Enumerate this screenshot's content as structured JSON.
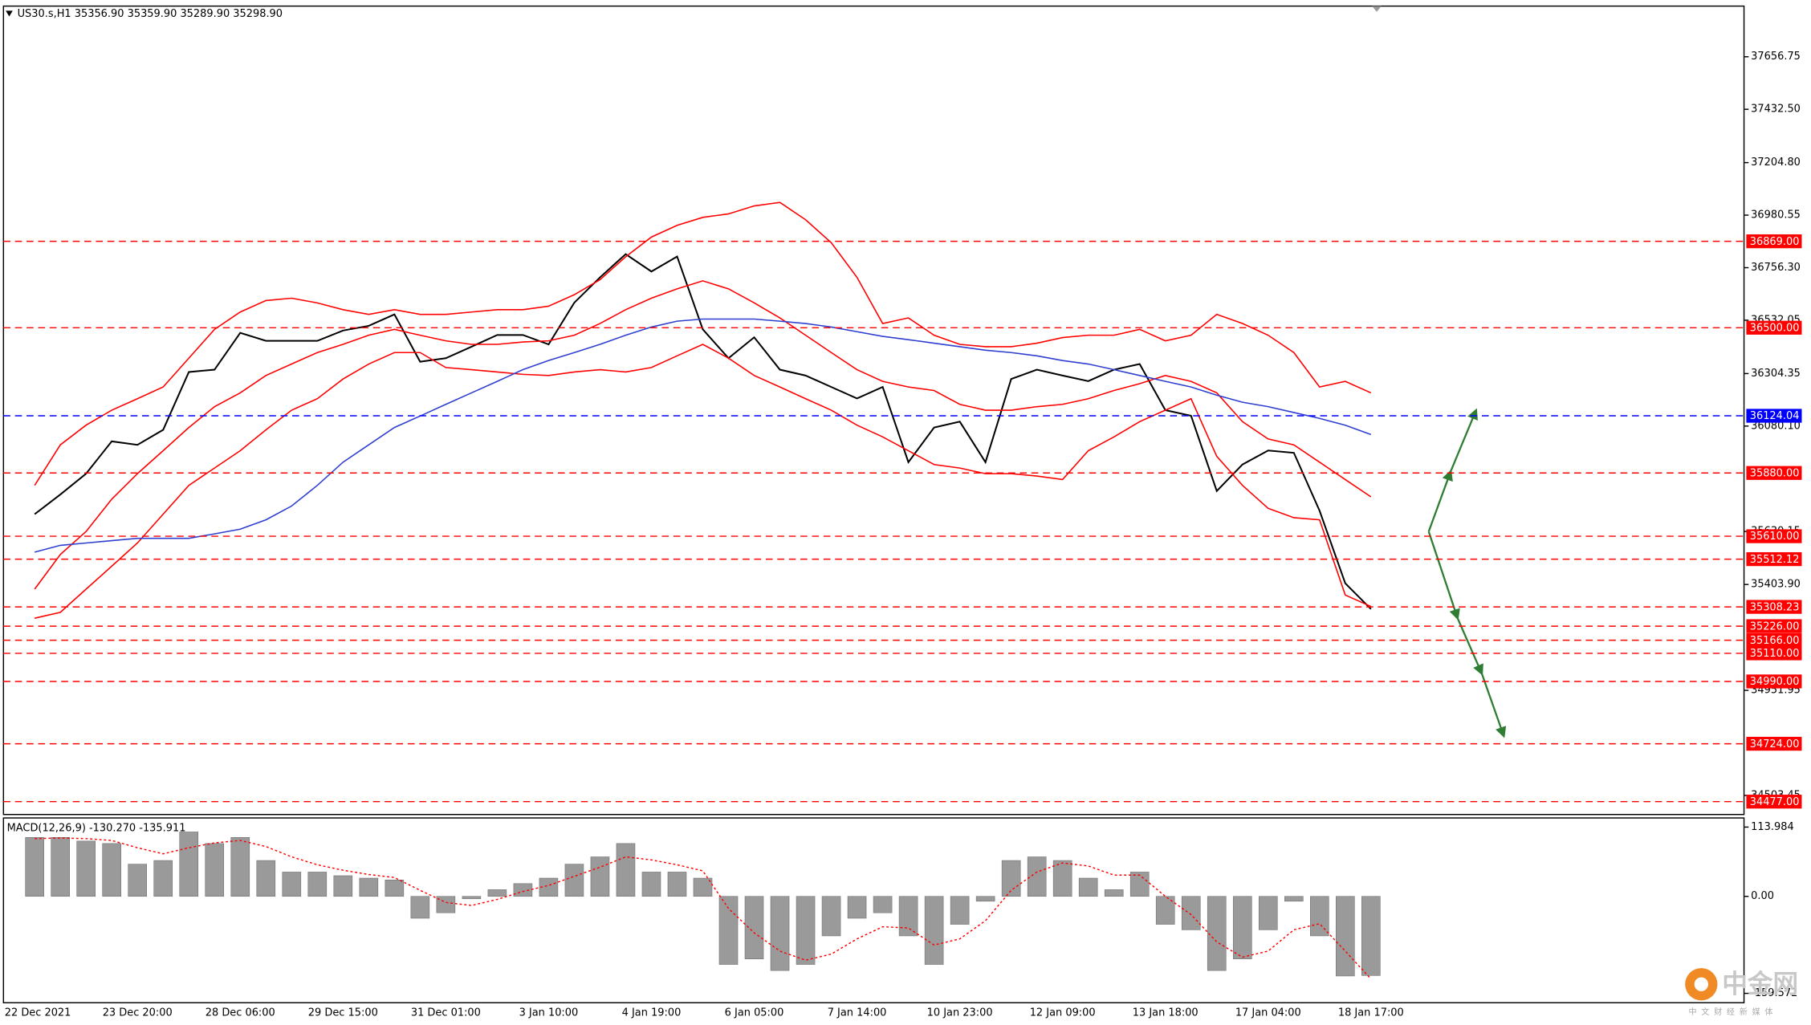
{
  "chart_data": [
    {
      "type": "line",
      "title": "US30.s,H1  35356.90 35359.90 35289.90 35298.90",
      "categories": [
        "22 Dec 2021",
        null,
        null,
        null,
        "23 Dec 20:00",
        null,
        null,
        null,
        "28 Dec 06:00",
        null,
        null,
        null,
        "29 Dec 15:00",
        null,
        null,
        null,
        "31 Dec 01:00",
        null,
        null,
        null,
        "3 Jan 10:00",
        null,
        null,
        null,
        "4 Jan 19:00",
        null,
        null,
        null,
        "6 Jan 05:00",
        null,
        null,
        null,
        "7 Jan 14:00",
        null,
        null,
        null,
        "10 Jan 23:00",
        null,
        null,
        null,
        "12 Jan 09:00",
        null,
        null,
        null,
        "13 Jan 18:00",
        null,
        null,
        null,
        "17 Jan 04:00",
        null,
        null,
        null,
        "18 Jan 17:00"
      ],
      "series": [
        {
          "color": "#000000",
          "values": [
            35704,
            35788,
            35877,
            36015,
            36000,
            36064,
            36311,
            36321,
            36478,
            36444,
            36444,
            36444,
            36488,
            36508,
            36557,
            36355,
            36370,
            36419,
            36469,
            36469,
            36429,
            36607,
            36715,
            36814,
            36740,
            36804,
            36493,
            36370,
            36459,
            36321,
            36296,
            36247,
            36198,
            36247,
            35926,
            36074,
            36099,
            35926,
            36281,
            36321,
            36296,
            36272,
            36321,
            36345,
            36148,
            36124,
            35803,
            35916,
            35976,
            35966,
            35719,
            35409,
            35298.9
          ]
        },
        {
          "color": "#ff0000",
          "values": [
            35827,
            36000,
            36084,
            36148,
            36197,
            36247,
            36370,
            36493,
            36567,
            36616,
            36626,
            36606,
            36577,
            36557,
            36577,
            36557,
            36557,
            36567,
            36577,
            36577,
            36592,
            36641,
            36705,
            36803,
            36887,
            36937,
            36971,
            36986,
            37020,
            37035,
            36961,
            36863,
            36715,
            36518,
            36542,
            36468,
            36429,
            36419,
            36419,
            36434,
            36458,
            36468,
            36468,
            36493,
            36444,
            36468,
            36557,
            36518,
            36468,
            36394,
            36247,
            36271,
            36222
          ]
        },
        {
          "color": "#ff0000",
          "values": [
            35384,
            35532,
            35630,
            35768,
            35877,
            35975,
            36074,
            36163,
            36222,
            36296,
            36345,
            36394,
            36429,
            36468,
            36493,
            36468,
            36444,
            36429,
            36429,
            36439,
            36444,
            36468,
            36518,
            36577,
            36626,
            36666,
            36700,
            36666,
            36606,
            36542,
            36468,
            36394,
            36321,
            36271,
            36247,
            36232,
            36173,
            36148,
            36148,
            36163,
            36173,
            36197,
            36232,
            36261,
            36296,
            36271,
            36222,
            36099,
            36025,
            36000,
            35926,
            35852,
            35778
          ]
        },
        {
          "color": "#ff0000",
          "values": [
            35260,
            35285,
            35384,
            35482,
            35581,
            35704,
            35827,
            35901,
            35975,
            36064,
            36148,
            36197,
            36281,
            36345,
            36394,
            36394,
            36330,
            36321,
            36311,
            36301,
            36296,
            36311,
            36321,
            36311,
            36330,
            36380,
            36429,
            36370,
            36296,
            36247,
            36197,
            36148,
            36084,
            36034,
            35975,
            35916,
            35901,
            35877,
            35877,
            35867,
            35852,
            35975,
            36034,
            36099,
            36148,
            36197,
            35951,
            35827,
            35729,
            35689,
            35680,
            35359,
            35310
          ]
        },
        {
          "color": "#2f3fd0",
          "values": [
            35542,
            35571,
            35581,
            35591,
            35601,
            35601,
            35601,
            35620,
            35640,
            35680,
            35739,
            35827,
            35926,
            36000,
            36074,
            36123,
            36173,
            36222,
            36271,
            36321,
            36360,
            36394,
            36429,
            36468,
            36503,
            36528,
            36537,
            36537,
            36537,
            36528,
            36518,
            36503,
            36483,
            36463,
            36449,
            36434,
            36419,
            36404,
            36394,
            36380,
            36360,
            36345,
            36321,
            36296,
            36271,
            36247,
            36212,
            36182,
            36163,
            36138,
            36113,
            36084,
            36044
          ]
        }
      ],
      "levels": [
        {
          "value": 36869,
          "label": "36869.00",
          "color": "#ff0000"
        },
        {
          "value": 36500,
          "label": "36500.00",
          "color": "#ff0000"
        },
        {
          "value": 36124.04,
          "color": "#0000ff"
        },
        {
          "value": 35880,
          "label": "35880.00",
          "color": "#ff0000"
        },
        {
          "value": 35610,
          "label": "35610.00",
          "color": "#ff0000"
        },
        {
          "value": 35512.12,
          "color": "#ff0000"
        },
        {
          "value": 35308.23,
          "color": "#ff0000"
        },
        {
          "value": 35226,
          "label": "35226.00",
          "color": "#ff0000"
        },
        {
          "value": 35166,
          "label": "35166.00",
          "color": "#ff0000"
        },
        {
          "value": 35110,
          "label": "35110.00",
          "color": "#ff0000"
        },
        {
          "value": 34990,
          "label": "34990.00",
          "color": "#ff0000"
        },
        {
          "value": 34724,
          "label": "34724.00",
          "color": "#ff0000"
        },
        {
          "value": 34477,
          "label": "34477.00",
          "color": "#ff0000"
        }
      ],
      "ylim": [
        34422,
        37873
      ],
      "yticks": [
        37656.75,
        {
          "value": 37432.5,
          "label": "37432.50"
        },
        {
          "value": 37204.8,
          "label": "37204.80"
        },
        36980.55,
        {
          "value": 36756.3,
          "label": "36756.30"
        },
        36532.05,
        36304.35,
        {
          "value": 36080.1,
          "label": "36080.10"
        },
        35630.15,
        {
          "value": 35403.9,
          "label": "35403.90"
        },
        34951.95,
        34503.45
      ],
      "grid": false
    },
    {
      "type": "macd",
      "title": "MACD(12,26,9) -130.270 -135.911",
      "series": [
        {
          "color": "#9a9a9a",
          "values": [
            97,
            97,
            91,
            87,
            53,
            59,
            106,
            87,
            97,
            59,
            40,
            40,
            34,
            30,
            27,
            -36,
            -27,
            -4,
            11,
            21,
            30,
            53,
            65,
            87,
            40,
            40,
            30,
            -112,
            -103,
            -122,
            -112,
            -65,
            -36,
            -27,
            -65,
            -112,
            -46,
            -8,
            59,
            65,
            59,
            30,
            11,
            40,
            -46,
            -55,
            -122,
            -103,
            -55,
            -8,
            -65,
            -131,
            -130.27
          ]
        },
        {
          "color": "#ff0000",
          "values": [
            95,
            96,
            95,
            92,
            80,
            70,
            80,
            88,
            92,
            82,
            65,
            52,
            43,
            36,
            31,
            10,
            -10,
            -15,
            -5,
            8,
            18,
            33,
            48,
            65,
            60,
            52,
            42,
            -20,
            -60,
            -90,
            -105,
            -95,
            -70,
            -50,
            -52,
            -80,
            -70,
            -40,
            10,
            40,
            55,
            50,
            35,
            35,
            0,
            -30,
            -75,
            -100,
            -90,
            -55,
            -45,
            -90,
            -135.911
          ]
        }
      ],
      "ylim": [
        -175,
        129
      ],
      "yticks": [
        113.984,
        {
          "value": 0,
          "label": "0.00"
        },
        -159.572
      ],
      "grid": false
    }
  ],
  "watermark": {
    "text": "中金网",
    "subtitle": "中文财经新媒体"
  }
}
